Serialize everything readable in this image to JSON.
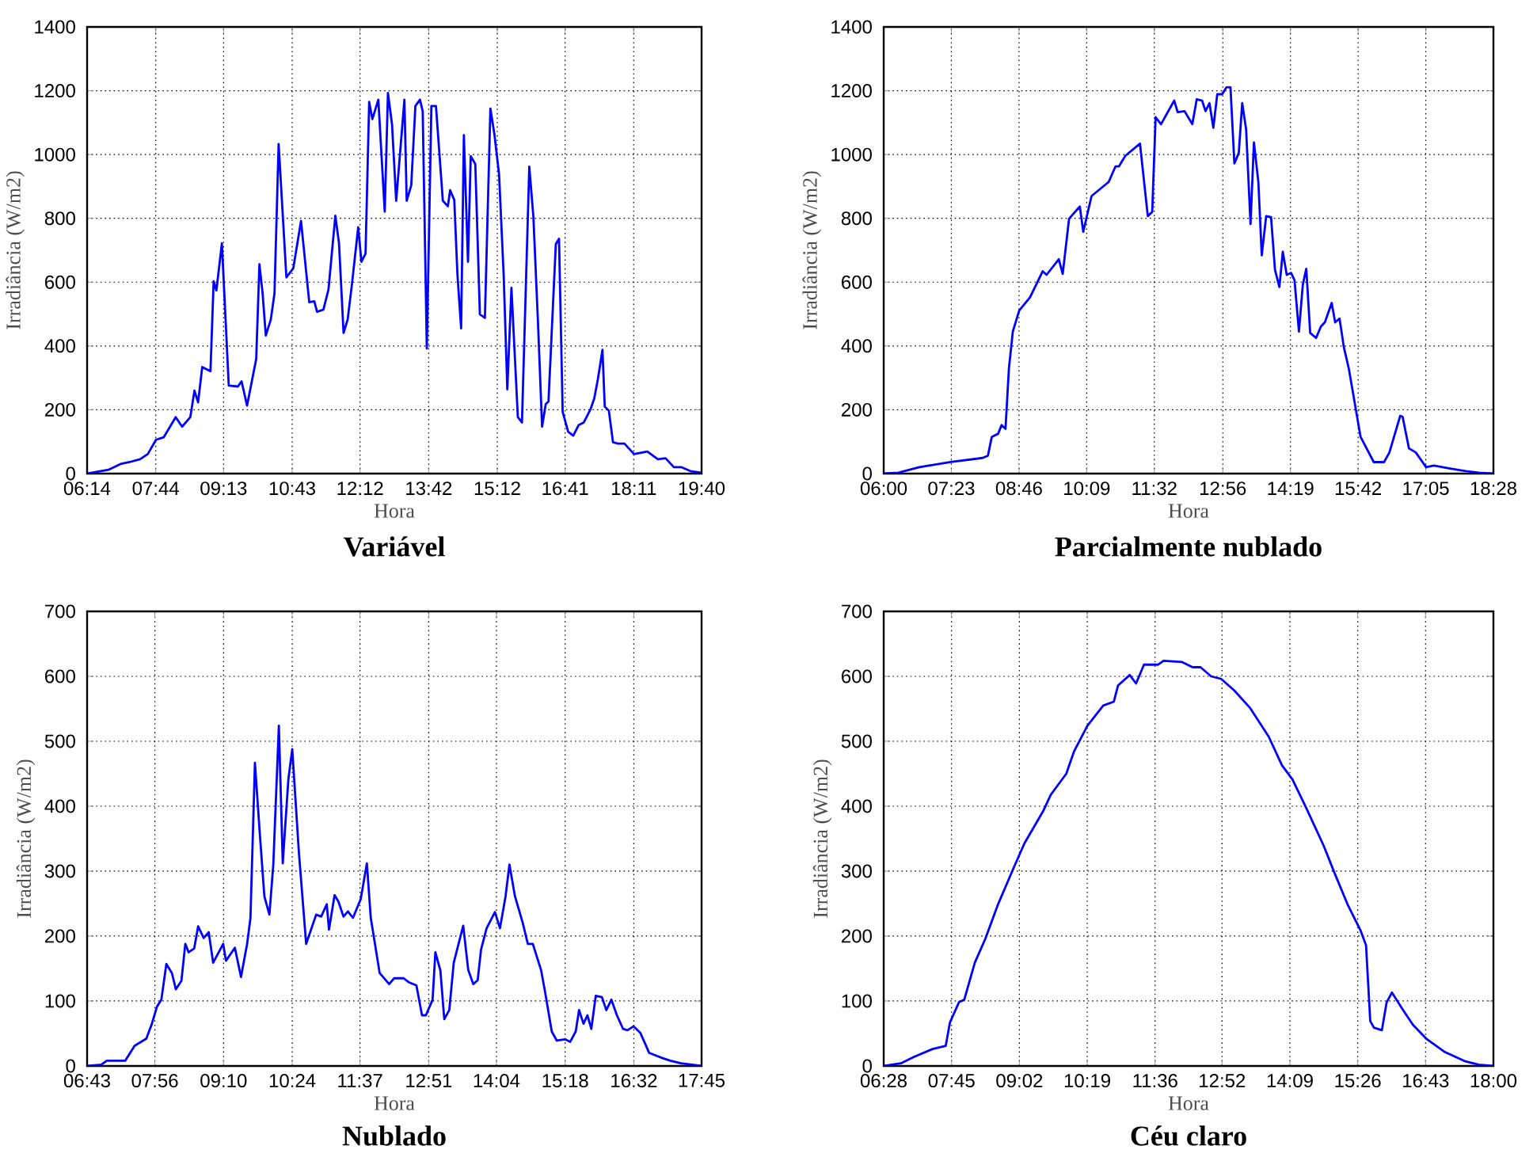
{
  "chart_data": [
    {
      "type": "line",
      "title": "Variável",
      "xlabel": "Hora",
      "ylabel": "Irradiância (W/m2)",
      "color": "#0000ff",
      "grid": true,
      "xlim": [
        6.2333,
        19.6667
      ],
      "ylim": [
        0,
        1400
      ],
      "yticks": [
        0,
        200,
        400,
        600,
        800,
        1000,
        1200,
        1400
      ],
      "xticks": [
        {
          "value": 6.2333,
          "label": "06:14"
        },
        {
          "value": 7.7333,
          "label": "07:44"
        },
        {
          "value": 9.2167,
          "label": "09:13"
        },
        {
          "value": 10.7167,
          "label": "10:43"
        },
        {
          "value": 12.2,
          "label": "12:12"
        },
        {
          "value": 13.7,
          "label": "13:42"
        },
        {
          "value": 15.2,
          "label": "15:12"
        },
        {
          "value": 16.6833,
          "label": "16:41"
        },
        {
          "value": 18.1833,
          "label": "18:11"
        },
        {
          "value": 19.6667,
          "label": "19:40"
        }
      ],
      "x": [
        6.24,
        6.7,
        6.98,
        7.16,
        7.39,
        7.56,
        7.74,
        7.91,
        8.17,
        8.31,
        8.49,
        8.58,
        8.66,
        8.75,
        8.93,
        9.0,
        9.06,
        9.18,
        9.33,
        9.53,
        9.61,
        9.73,
        9.93,
        10.0,
        10.07,
        10.14,
        10.25,
        10.33,
        10.42,
        10.59,
        10.74,
        10.91,
        11.09,
        11.2,
        11.26,
        11.4,
        11.51,
        11.66,
        11.74,
        11.84,
        11.93,
        12.02,
        12.16,
        12.23,
        12.32,
        12.4,
        12.47,
        12.6,
        12.74,
        12.81,
        12.9,
        12.99,
        13.17,
        13.22,
        13.32,
        13.41,
        13.51,
        13.57,
        13.66,
        13.76,
        13.86,
        14.01,
        14.12,
        14.17,
        14.26,
        14.33,
        14.41,
        14.47,
        14.56,
        14.62,
        14.72,
        14.82,
        14.93,
        15.05,
        15.14,
        15.24,
        15.34,
        15.42,
        15.51,
        15.65,
        15.74,
        15.9,
        15.99,
        16.09,
        16.18,
        16.26,
        16.32,
        16.48,
        16.55,
        16.63,
        16.75,
        16.86,
        16.98,
        17.09,
        17.24,
        17.32,
        17.4,
        17.5,
        17.55,
        17.64,
        17.73,
        17.84,
        17.98,
        18.19,
        18.48,
        18.71,
        18.88,
        19.06,
        19.23,
        19.44,
        19.66
      ],
      "values": [
        0,
        12,
        31,
        36,
        45,
        61,
        106,
        114,
        177,
        147,
        177,
        260,
        223,
        334,
        321,
        603,
        574,
        722,
        276,
        273,
        289,
        213,
        359,
        656,
        565,
        433,
        483,
        565,
        1033,
        615,
        643,
        792,
        537,
        540,
        507,
        514,
        577,
        808,
        722,
        441,
        483,
        590,
        772,
        664,
        689,
        1165,
        1111,
        1172,
        821,
        1193,
        1094,
        855,
        1172,
        855,
        904,
        1152,
        1172,
        1136,
        392,
        1152,
        1152,
        855,
        838,
        888,
        858,
        623,
        455,
        1061,
        664,
        995,
        970,
        499,
        488,
        1144,
        1061,
        937,
        623,
        264,
        582,
        177,
        160,
        962,
        805,
        474,
        147,
        218,
        226,
        719,
        736,
        193,
        131,
        119,
        152,
        160,
        202,
        235,
        296,
        388,
        210,
        197,
        98,
        94,
        94,
        61,
        69,
        45,
        48,
        20,
        20,
        7,
        3
      ]
    },
    {
      "type": "line",
      "title": "Parcialmente nublado",
      "xlabel": "Hora",
      "ylabel": "Irradiância (W/m2)",
      "color": "#0000ff",
      "grid": true,
      "xlim": [
        6.0,
        18.4667
      ],
      "ylim": [
        0,
        1400
      ],
      "yticks": [
        0,
        200,
        400,
        600,
        800,
        1000,
        1200,
        1400
      ],
      "xticks": [
        {
          "value": 6.0,
          "label": "06:00"
        },
        {
          "value": 7.3833,
          "label": "07:23"
        },
        {
          "value": 8.7667,
          "label": "08:46"
        },
        {
          "value": 10.15,
          "label": "10:09"
        },
        {
          "value": 11.5333,
          "label": "11:32"
        },
        {
          "value": 12.9333,
          "label": "12:56"
        },
        {
          "value": 14.3167,
          "label": "14:19"
        },
        {
          "value": 15.7,
          "label": "15:42"
        },
        {
          "value": 17.0833,
          "label": "17:05"
        },
        {
          "value": 18.4667,
          "label": "18:28"
        }
      ],
      "x": [
        6.0,
        6.3,
        6.73,
        7.37,
        8.02,
        8.13,
        8.21,
        8.34,
        8.41,
        8.49,
        8.56,
        8.64,
        8.77,
        8.99,
        9.25,
        9.33,
        9.58,
        9.66,
        9.79,
        10.01,
        10.08,
        10.25,
        10.6,
        10.74,
        10.81,
        10.94,
        11.24,
        11.4,
        11.49,
        11.56,
        11.67,
        11.94,
        12.01,
        12.15,
        12.31,
        12.4,
        12.51,
        12.58,
        12.66,
        12.74,
        12.82,
        12.92,
        13.01,
        13.09,
        13.17,
        13.26,
        13.33,
        13.41,
        13.5,
        13.57,
        13.66,
        13.73,
        13.82,
        13.92,
        14.0,
        14.09,
        14.16,
        14.24,
        14.33,
        14.4,
        14.49,
        14.57,
        14.64,
        14.72,
        14.84,
        14.94,
        15.02,
        15.16,
        15.23,
        15.32,
        15.41,
        15.51,
        15.75,
        16.02,
        16.23,
        16.34,
        16.56,
        16.61,
        16.74,
        16.88,
        17.09,
        17.25,
        17.58,
        17.9,
        18.17,
        18.46
      ],
      "values": [
        0,
        3,
        20,
        36,
        49,
        56,
        115,
        125,
        152,
        140,
        329,
        445,
        511,
        552,
        634,
        623,
        672,
        626,
        799,
        837,
        758,
        870,
        914,
        963,
        963,
        996,
        1034,
        807,
        820,
        1117,
        1095,
        1169,
        1133,
        1136,
        1095,
        1173,
        1169,
        1136,
        1161,
        1084,
        1189,
        1189,
        1211,
        1211,
        972,
        1005,
        1161,
        1079,
        782,
        1038,
        914,
        684,
        807,
        804,
        639,
        585,
        695,
        623,
        629,
        606,
        445,
        593,
        642,
        441,
        425,
        461,
        474,
        535,
        474,
        486,
        395,
        329,
        115,
        36,
        36,
        66,
        181,
        178,
        79,
        66,
        20,
        25,
        16,
        8,
        3,
        0
      ]
    },
    {
      "type": "line",
      "title": "Nublado",
      "xlabel": "Hora",
      "ylabel": "Irradiância (W/m2)",
      "color": "#0000ff",
      "grid": true,
      "xlim": [
        6.7167,
        17.75
      ],
      "ylim": [
        0,
        700
      ],
      "yticks": [
        0,
        100,
        200,
        300,
        400,
        500,
        600,
        700
      ],
      "xticks": [
        {
          "value": 6.7167,
          "label": "06:43"
        },
        {
          "value": 7.9333,
          "label": "07:56"
        },
        {
          "value": 9.1667,
          "label": "09:10"
        },
        {
          "value": 10.4,
          "label": "10:24"
        },
        {
          "value": 11.6167,
          "label": "11:37"
        },
        {
          "value": 12.85,
          "label": "12:51"
        },
        {
          "value": 14.0667,
          "label": "14:04"
        },
        {
          "value": 15.3,
          "label": "15:18"
        },
        {
          "value": 16.5333,
          "label": "16:32"
        },
        {
          "value": 17.75,
          "label": "17:45"
        }
      ],
      "x": [
        6.72,
        6.97,
        7.07,
        7.4,
        7.57,
        7.78,
        7.88,
        7.97,
        8.05,
        8.14,
        8.24,
        8.31,
        8.41,
        8.48,
        8.54,
        8.64,
        8.71,
        8.81,
        8.9,
        8.98,
        9.16,
        9.21,
        9.37,
        9.48,
        9.59,
        9.65,
        9.73,
        9.81,
        9.9,
        9.99,
        10.06,
        10.16,
        10.23,
        10.33,
        10.4,
        10.52,
        10.65,
        10.83,
        10.92,
        11.02,
        11.06,
        11.16,
        11.23,
        11.32,
        11.4,
        11.49,
        11.63,
        11.74,
        11.81,
        11.97,
        12.14,
        12.23,
        12.4,
        12.49,
        12.63,
        12.73,
        12.8,
        12.92,
        12.97,
        13.06,
        13.13,
        13.22,
        13.3,
        13.47,
        13.56,
        13.65,
        13.73,
        13.79,
        13.89,
        14.04,
        14.13,
        14.23,
        14.3,
        14.4,
        14.54,
        14.63,
        14.72,
        14.87,
        14.94,
        15.06,
        15.15,
        15.3,
        15.39,
        15.49,
        15.55,
        15.63,
        15.7,
        15.77,
        15.85,
        15.96,
        16.04,
        16.13,
        16.23,
        16.34,
        16.42,
        16.53,
        16.65,
        16.81,
        17.05,
        17.19,
        17.38,
        17.75
      ],
      "values": [
        0,
        2,
        8,
        8,
        31,
        42,
        65,
        91,
        102,
        157,
        143,
        118,
        131,
        188,
        175,
        181,
        215,
        197,
        206,
        159,
        188,
        162,
        182,
        137,
        188,
        228,
        467,
        367,
        261,
        233,
        310,
        524,
        312,
        441,
        488,
        328,
        188,
        233,
        230,
        249,
        210,
        263,
        253,
        230,
        238,
        228,
        257,
        312,
        228,
        143,
        126,
        135,
        135,
        129,
        124,
        78,
        78,
        102,
        175,
        147,
        72,
        86,
        159,
        216,
        148,
        126,
        132,
        179,
        212,
        237,
        212,
        261,
        310,
        261,
        220,
        188,
        188,
        147,
        114,
        53,
        39,
        41,
        37,
        53,
        86,
        65,
        78,
        57,
        108,
        106,
        86,
        102,
        78,
        57,
        55,
        61,
        51,
        20,
        12,
        8,
        4,
        0
      ]
    },
    {
      "type": "line",
      "title": "Céu claro",
      "xlabel": "Hora",
      "ylabel": "Irradiância (W/m2)",
      "color": "#0000ff",
      "grid": true,
      "xlim": [
        6.4667,
        18.0
      ],
      "ylim": [
        0,
        700
      ],
      "yticks": [
        0,
        100,
        200,
        300,
        400,
        500,
        600,
        700
      ],
      "xticks": [
        {
          "value": 6.4667,
          "label": "06:28"
        },
        {
          "value": 7.75,
          "label": "07:45"
        },
        {
          "value": 9.0333,
          "label": "09:02"
        },
        {
          "value": 10.3167,
          "label": "10:19"
        },
        {
          "value": 11.6,
          "label": "11:36"
        },
        {
          "value": 12.8667,
          "label": "12:52"
        },
        {
          "value": 14.15,
          "label": "14:09"
        },
        {
          "value": 15.4333,
          "label": "15:26"
        },
        {
          "value": 16.7167,
          "label": "16:43"
        },
        {
          "value": 18.0,
          "label": "18:00"
        }
      ],
      "x": [
        6.47,
        6.79,
        7.04,
        7.39,
        7.64,
        7.72,
        7.89,
        7.99,
        8.19,
        8.39,
        8.63,
        8.93,
        9.13,
        9.48,
        9.63,
        9.92,
        10.07,
        10.32,
        10.62,
        10.82,
        10.9,
        11.12,
        11.24,
        11.39,
        11.66,
        11.76,
        12.11,
        12.31,
        12.46,
        12.66,
        12.85,
        13.1,
        13.4,
        13.75,
        14.0,
        14.2,
        14.49,
        14.79,
        14.99,
        15.24,
        15.49,
        15.59,
        15.67,
        15.74,
        15.89,
        15.98,
        16.08,
        16.26,
        16.48,
        16.73,
        17.07,
        17.47,
        17.72,
        18.0
      ],
      "values": [
        0,
        4,
        14,
        26,
        31,
        67,
        98,
        102,
        159,
        196,
        249,
        306,
        343,
        392,
        418,
        450,
        485,
        524,
        555,
        561,
        586,
        602,
        589,
        618,
        618,
        624,
        622,
        614,
        614,
        600,
        596,
        578,
        551,
        507,
        463,
        441,
        392,
        339,
        298,
        249,
        208,
        186,
        69,
        59,
        55,
        98,
        113,
        90,
        63,
        42,
        22,
        7,
        2,
        0
      ]
    }
  ]
}
